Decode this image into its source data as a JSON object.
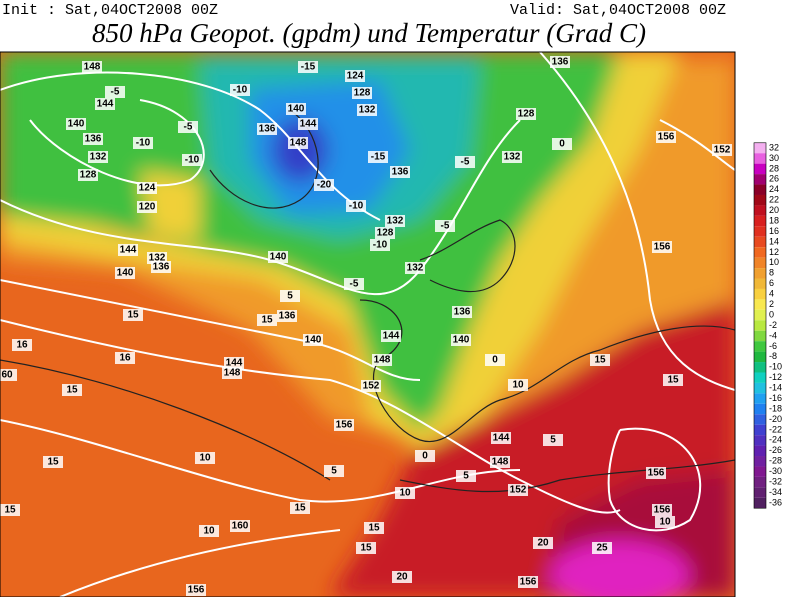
{
  "header": {
    "init": "Init : Sat,04OCT2008 00Z",
    "valid": "Valid: Sat,04OCT2008 00Z",
    "title": "850 hPa Geopot. (gpdm) und Temperatur (Grad C)"
  },
  "legend": {
    "levels": [
      32,
      30,
      28,
      26,
      24,
      22,
      20,
      18,
      16,
      14,
      12,
      10,
      8,
      6,
      4,
      2,
      0,
      -2,
      -4,
      -6,
      -8,
      -10,
      -12,
      -14,
      -16,
      -18,
      -20,
      -22,
      -24,
      -26,
      -28,
      -30,
      -32,
      -34,
      -36
    ],
    "colors": [
      "#f4b0f0",
      "#e860e0",
      "#c800c0",
      "#a00070",
      "#8a0028",
      "#a00818",
      "#c01020",
      "#d82020",
      "#e03020",
      "#e84a20",
      "#f06820",
      "#f08428",
      "#f0a030",
      "#f0b838",
      "#f8d040",
      "#f8e850",
      "#e0f050",
      "#b8e840",
      "#80d840",
      "#40c840",
      "#20b840",
      "#10c080",
      "#10d0c0",
      "#20c0e0",
      "#20a0f0",
      "#2080f0",
      "#3060e0",
      "#4040d0",
      "#5030c0",
      "#6020b0",
      "#7020a0",
      "#801890",
      "#702080",
      "#602070",
      "#502060"
    ]
  },
  "map_labels": [
    148,
    144,
    140,
    136,
    132,
    128,
    124,
    120,
    -5,
    -10,
    -10,
    -5,
    -10,
    -15,
    124,
    128,
    132,
    140,
    144,
    148,
    136,
    -20,
    -15,
    136,
    -10,
    132,
    128,
    -10,
    -5,
    132,
    -5,
    -5,
    132,
    136,
    128,
    0,
    156,
    152,
    156,
    144,
    140,
    132,
    136,
    140,
    15,
    15,
    5,
    136,
    140,
    144,
    148,
    16,
    16,
    60,
    15,
    152,
    144,
    148,
    140,
    136,
    0,
    156,
    10,
    15,
    15,
    5,
    0,
    144,
    148,
    152,
    10,
    5,
    10,
    160,
    15,
    15,
    15,
    20,
    25,
    20,
    156,
    156,
    156,
    156,
    10,
    5,
    10,
    15,
    15
  ]
}
